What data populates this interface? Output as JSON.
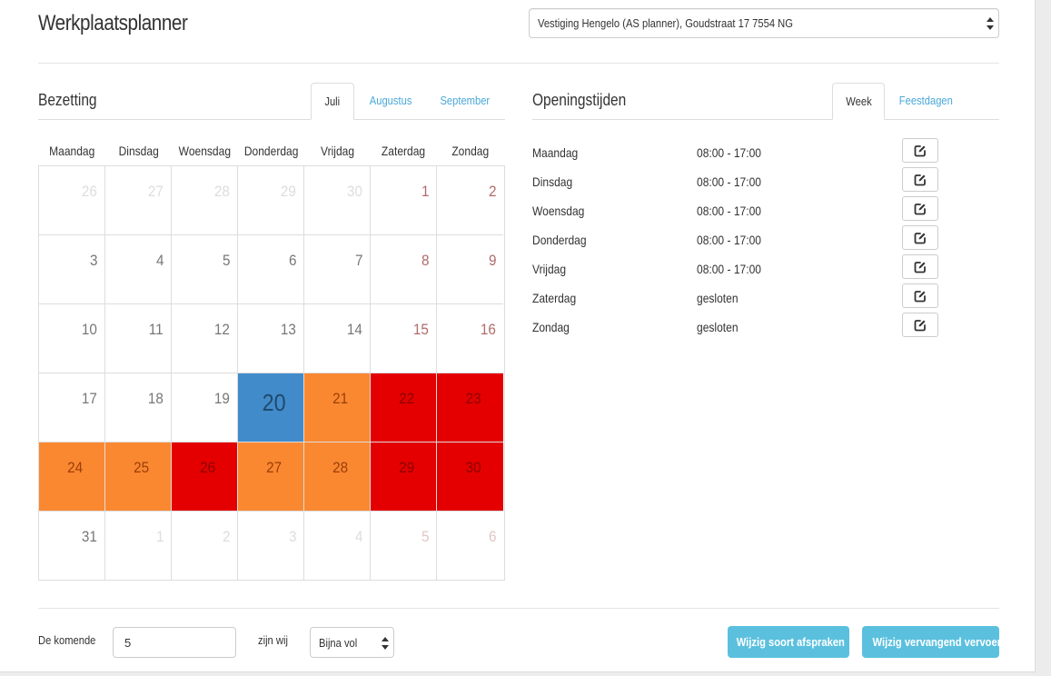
{
  "app": {
    "title": "Werkplaatsplanner"
  },
  "location": {
    "selected": "Vestiging Hengelo (AS planner), Goudstraat 17 7554 NG"
  },
  "occupancy": {
    "title": "Bezetting",
    "tabs": [
      "Juli",
      "Augustus",
      "September"
    ],
    "active_tab": "Juli",
    "weekdays": [
      "Maandag",
      "Dinsdag",
      "Woensdag",
      "Donderdag",
      "Vrijdag",
      "Zaterdag",
      "Zondag"
    ],
    "colors": {
      "today": "#428bca",
      "busy": "#fa8831",
      "full": "#e40000"
    },
    "weeks": [
      [
        {
          "d": "26",
          "s": "other"
        },
        {
          "d": "27",
          "s": "other"
        },
        {
          "d": "28",
          "s": "other"
        },
        {
          "d": "29",
          "s": "other"
        },
        {
          "d": "30",
          "s": "other"
        },
        {
          "d": "1",
          "s": "weekend"
        },
        {
          "d": "2",
          "s": "weekend"
        }
      ],
      [
        {
          "d": "3",
          "s": "normal"
        },
        {
          "d": "4",
          "s": "normal"
        },
        {
          "d": "5",
          "s": "normal"
        },
        {
          "d": "6",
          "s": "normal"
        },
        {
          "d": "7",
          "s": "normal"
        },
        {
          "d": "8",
          "s": "weekend"
        },
        {
          "d": "9",
          "s": "weekend"
        }
      ],
      [
        {
          "d": "10",
          "s": "normal"
        },
        {
          "d": "11",
          "s": "normal"
        },
        {
          "d": "12",
          "s": "normal"
        },
        {
          "d": "13",
          "s": "normal"
        },
        {
          "d": "14",
          "s": "normal"
        },
        {
          "d": "15",
          "s": "weekend"
        },
        {
          "d": "16",
          "s": "weekend"
        }
      ],
      [
        {
          "d": "17",
          "s": "normal"
        },
        {
          "d": "18",
          "s": "normal"
        },
        {
          "d": "19",
          "s": "normal"
        },
        {
          "d": "20",
          "s": "today"
        },
        {
          "d": "21",
          "s": "busy"
        },
        {
          "d": "22",
          "s": "full"
        },
        {
          "d": "23",
          "s": "full"
        }
      ],
      [
        {
          "d": "24",
          "s": "busy"
        },
        {
          "d": "25",
          "s": "busy"
        },
        {
          "d": "26",
          "s": "full"
        },
        {
          "d": "27",
          "s": "busy"
        },
        {
          "d": "28",
          "s": "busy"
        },
        {
          "d": "29",
          "s": "full"
        },
        {
          "d": "30",
          "s": "full"
        }
      ],
      [
        {
          "d": "31",
          "s": "normal"
        },
        {
          "d": "1",
          "s": "other"
        },
        {
          "d": "2",
          "s": "other"
        },
        {
          "d": "3",
          "s": "other"
        },
        {
          "d": "4",
          "s": "other"
        },
        {
          "d": "5",
          "s": "other"
        },
        {
          "d": "6",
          "s": "other"
        }
      ]
    ]
  },
  "opening_hours": {
    "title": "Openingstijden",
    "tabs": [
      "Week",
      "Feestdagen"
    ],
    "active_tab": "Week",
    "rows": [
      {
        "day": "Maandag",
        "hours": "08:00 - 17:00"
      },
      {
        "day": "Dinsdag",
        "hours": "08:00 - 17:00"
      },
      {
        "day": "Woensdag",
        "hours": "08:00 - 17:00"
      },
      {
        "day": "Donderdag",
        "hours": "08:00 - 17:00"
      },
      {
        "day": "Vrijdag",
        "hours": "08:00 - 17:00"
      },
      {
        "day": "Zaterdag",
        "hours": "gesloten"
      },
      {
        "day": "Zondag",
        "hours": "gesloten"
      }
    ],
    "edit_icon": "edit-icon"
  },
  "footer": {
    "prefix_label": "De komende",
    "days_value": "5",
    "middle_label": "zijn wij",
    "status_selected": "Bijna vol",
    "button_appointments": "Wijzig soort afspraken",
    "button_transport": "Wijzig vervangend vervoer",
    "button_color": "#5bc0de"
  }
}
